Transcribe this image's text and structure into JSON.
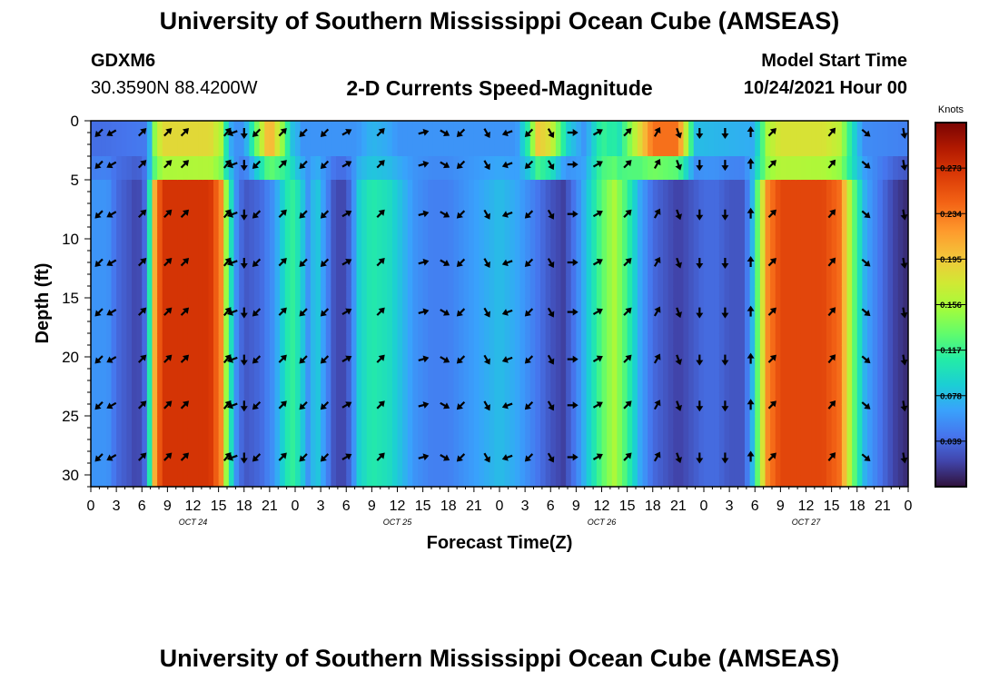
{
  "header": {
    "title": "University of Southern Mississippi Ocean Cube (AMSEAS)",
    "station_id": "GDXM6",
    "coordinates": "30.3590N  88.4200W",
    "plot_title": "2-D Currents Speed-Magnitude",
    "model_start_label": "Model Start Time",
    "model_start_value": "10/24/2021 Hour 00"
  },
  "footer": {
    "repeated_title": "University of Southern Mississippi Ocean Cube (AMSEAS)"
  },
  "colors": {
    "palette": [
      "#30123b",
      "#4145ab",
      "#4675ed",
      "#39a2fc",
      "#1bcfd4",
      "#24eca6",
      "#61fc6c",
      "#a4fc3b",
      "#d1e834",
      "#f3c63a",
      "#fe9b2d",
      "#f36315",
      "#d93806",
      "#b11901",
      "#7a0403"
    ]
  },
  "chart_data": {
    "type": "heatmap",
    "title": "2-D Currents Speed-Magnitude",
    "xlabel": "Forecast Time(Z)",
    "ylabel": "Depth (ft)",
    "x_ticks": [
      "0",
      "3",
      "6",
      "9",
      "12",
      "15",
      "18",
      "21",
      "0",
      "3",
      "6",
      "9",
      "12",
      "15",
      "18",
      "21",
      "0",
      "3",
      "6",
      "9",
      "12",
      "15",
      "18",
      "21",
      "0",
      "3",
      "6",
      "9",
      "12",
      "15",
      "18",
      "21",
      "0"
    ],
    "x_range_hours": [
      0,
      96
    ],
    "date_labels": [
      {
        "label": "OCT 24",
        "hour": 12
      },
      {
        "label": "OCT 25",
        "hour": 36
      },
      {
        "label": "OCT 26",
        "hour": 60
      },
      {
        "label": "OCT 27",
        "hour": 84
      }
    ],
    "y_ticks": [
      0,
      5,
      10,
      15,
      20,
      25,
      30
    ],
    "y_range_ft": [
      0,
      31
    ],
    "colorbar": {
      "unit": "Knots",
      "ticks": [
        "0.273",
        "0.234",
        "0.195",
        "0.156",
        "0.117",
        "0.078",
        "0.039"
      ],
      "range": [
        0,
        0.312
      ]
    },
    "depth_levels_ft": [
      3.7,
      7.9,
      12.0,
      16.2,
      20.2,
      24.1,
      28.5
    ],
    "speed_profile_by_hour": [
      {
        "hour": 0,
        "speed": 0.06
      },
      {
        "hour": 2,
        "speed": 0.06
      },
      {
        "hour": 3,
        "speed": 0.04
      },
      {
        "hour": 4.5,
        "speed": 0.03
      },
      {
        "hour": 5.5,
        "speed": 0.02
      },
      {
        "hour": 6.3,
        "speed": 0.04
      },
      {
        "hour": 7,
        "speed": 0.12
      },
      {
        "hour": 7.6,
        "speed": 0.23
      },
      {
        "hour": 8.5,
        "speed": 0.27
      },
      {
        "hour": 14,
        "speed": 0.27
      },
      {
        "hour": 15.3,
        "speed": 0.23
      },
      {
        "hour": 16,
        "speed": 0.14
      },
      {
        "hour": 17,
        "speed": 0.06
      },
      {
        "hour": 18,
        "speed": 0.03
      },
      {
        "hour": 20,
        "speed": 0.04
      },
      {
        "hour": 21.5,
        "speed": 0.06
      },
      {
        "hour": 22.5,
        "speed": 0.09
      },
      {
        "hour": 23.5,
        "speed": 0.12
      },
      {
        "hour": 24.5,
        "speed": 0.1
      },
      {
        "hour": 25.5,
        "speed": 0.06
      },
      {
        "hour": 26.5,
        "speed": 0.09
      },
      {
        "hour": 27.5,
        "speed": 0.06
      },
      {
        "hour": 28.5,
        "speed": 0.03
      },
      {
        "hour": 29.5,
        "speed": 0.02
      },
      {
        "hour": 30.5,
        "speed": 0.04
      },
      {
        "hour": 31.5,
        "speed": 0.09
      },
      {
        "hour": 33,
        "speed": 0.11
      },
      {
        "hour": 35,
        "speed": 0.1
      },
      {
        "hour": 36.5,
        "speed": 0.08
      },
      {
        "hour": 38,
        "speed": 0.06
      },
      {
        "hour": 40,
        "speed": 0.05
      },
      {
        "hour": 42,
        "speed": 0.05
      },
      {
        "hour": 44,
        "speed": 0.06
      },
      {
        "hour": 46,
        "speed": 0.07
      },
      {
        "hour": 48,
        "speed": 0.08
      },
      {
        "hour": 50,
        "speed": 0.07
      },
      {
        "hour": 52,
        "speed": 0.05
      },
      {
        "hour": 54,
        "speed": 0.03
      },
      {
        "hour": 55.5,
        "speed": 0.02
      },
      {
        "hour": 57,
        "speed": 0.05
      },
      {
        "hour": 58.5,
        "speed": 0.09
      },
      {
        "hour": 60,
        "speed": 0.13
      },
      {
        "hour": 61.5,
        "speed": 0.16
      },
      {
        "hour": 63,
        "speed": 0.12
      },
      {
        "hour": 64.5,
        "speed": 0.07
      },
      {
        "hour": 66,
        "speed": 0.04
      },
      {
        "hour": 67.5,
        "speed": 0.03
      },
      {
        "hour": 69,
        "speed": 0.02
      },
      {
        "hour": 70.5,
        "speed": 0.03
      },
      {
        "hour": 72,
        "speed": 0.04
      },
      {
        "hour": 73.5,
        "speed": 0.04
      },
      {
        "hour": 75,
        "speed": 0.03
      },
      {
        "hour": 76.5,
        "speed": 0.03
      },
      {
        "hour": 77.5,
        "speed": 0.06
      },
      {
        "hour": 78.5,
        "speed": 0.15
      },
      {
        "hour": 79.5,
        "speed": 0.23
      },
      {
        "hour": 81,
        "speed": 0.26
      },
      {
        "hour": 86,
        "speed": 0.26
      },
      {
        "hour": 88,
        "speed": 0.24
      },
      {
        "hour": 89.5,
        "speed": 0.14
      },
      {
        "hour": 91,
        "speed": 0.07
      },
      {
        "hour": 93,
        "speed": 0.04
      },
      {
        "hour": 94.5,
        "speed": 0.02
      },
      {
        "hour": 96,
        "speed": 0.01
      }
    ],
    "surface_speed_by_hour": [
      {
        "hour": 0,
        "speed": 0.04
      },
      {
        "hour": 18,
        "speed": 0.06
      },
      {
        "hour": 19.5,
        "speed": 0.14
      },
      {
        "hour": 21,
        "speed": 0.22
      },
      {
        "hour": 22.5,
        "speed": 0.15
      },
      {
        "hour": 24,
        "speed": 0.06
      },
      {
        "hour": 50,
        "speed": 0.06
      },
      {
        "hour": 51.5,
        "speed": 0.12
      },
      {
        "hour": 52.5,
        "speed": 0.2
      },
      {
        "hour": 54,
        "speed": 0.18
      },
      {
        "hour": 56,
        "speed": 0.09
      },
      {
        "hour": 58,
        "speed": 0.06
      },
      {
        "hour": 60,
        "speed": 0.12
      },
      {
        "hour": 62,
        "speed": 0.1
      },
      {
        "hour": 66,
        "speed": 0.24
      },
      {
        "hour": 69,
        "speed": 0.24
      },
      {
        "hour": 71,
        "speed": 0.08
      },
      {
        "hour": 96,
        "speed": 0.05
      }
    ],
    "current_direction_deg": [
      {
        "hour": 1,
        "deg": 225
      },
      {
        "hour": 2.5,
        "deg": 240
      },
      {
        "hour": 6,
        "deg": 45
      },
      {
        "hour": 9,
        "deg": 45
      },
      {
        "hour": 11,
        "deg": 45
      },
      {
        "hour": 16,
        "deg": 40
      },
      {
        "hour": 16.7,
        "deg": 250
      },
      {
        "hour": 18,
        "deg": 180
      },
      {
        "hour": 19.5,
        "deg": 225
      },
      {
        "hour": 22.5,
        "deg": 45
      },
      {
        "hour": 25,
        "deg": 225
      },
      {
        "hour": 27.5,
        "deg": 225
      },
      {
        "hour": 30,
        "deg": 60
      },
      {
        "hour": 34,
        "deg": 45
      },
      {
        "hour": 39,
        "deg": 75
      },
      {
        "hour": 41.5,
        "deg": 120
      },
      {
        "hour": 43.5,
        "deg": 225
      },
      {
        "hour": 46.5,
        "deg": 150
      },
      {
        "hour": 49,
        "deg": 250
      },
      {
        "hour": 51.5,
        "deg": 225
      },
      {
        "hour": 54,
        "deg": 150
      },
      {
        "hour": 56.5,
        "deg": 90
      },
      {
        "hour": 59.5,
        "deg": 60
      },
      {
        "hour": 63,
        "deg": 45
      },
      {
        "hour": 66.5,
        "deg": 30
      },
      {
        "hour": 69,
        "deg": 160
      },
      {
        "hour": 71.5,
        "deg": 180
      },
      {
        "hour": 74.5,
        "deg": 180
      },
      {
        "hour": 77.5,
        "deg": 0
      },
      {
        "hour": 80,
        "deg": 45
      },
      {
        "hour": 87,
        "deg": 40
      },
      {
        "hour": 91,
        "deg": 130
      },
      {
        "hour": 95.5,
        "deg": 170
      }
    ]
  }
}
